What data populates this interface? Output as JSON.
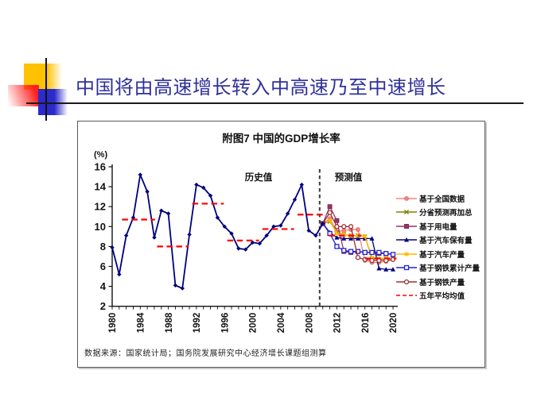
{
  "slide": {
    "title": "中国将由高速增长转入中高速乃至中速增长"
  },
  "chart_data": {
    "type": "line",
    "title": "附图7 中国的GDP增长率",
    "unit_label": "(%)",
    "annotations": {
      "historical": "历史值",
      "forecast": "预测值"
    },
    "source_note": "数据来源：国家统计局；国务院发展研究中心经济增长课题组测算",
    "xlim": [
      1980,
      2020
    ],
    "ylim": [
      2,
      16
    ],
    "y_ticks": [
      2,
      4,
      6,
      8,
      10,
      12,
      14,
      16
    ],
    "x_tick_labels": [
      1980,
      1984,
      1988,
      1992,
      1996,
      2000,
      2004,
      2008,
      2012,
      2016,
      2020
    ],
    "divider_year": 2009.55,
    "grid": false,
    "legend_position": "right",
    "historical": {
      "name": "GDP增长率历史值",
      "color": "#000080",
      "marker": "diamond",
      "years_start": 1980,
      "values": [
        7.9,
        5.2,
        9.1,
        10.9,
        15.2,
        13.5,
        8.9,
        11.6,
        11.3,
        4.1,
        3.8,
        9.2,
        14.2,
        13.9,
        13.1,
        10.9,
        10.0,
        9.3,
        7.8,
        7.7,
        8.4,
        8.3,
        9.1,
        10.0,
        10.1,
        11.3,
        12.7,
        14.2,
        9.6,
        9.1,
        10.3
      ]
    },
    "forecasts": [
      {
        "name": "基于全国数据",
        "color": "#ff8080",
        "edge": "#d46a6a",
        "marker": "circle",
        "years_start": 2010,
        "values": [
          10.3,
          10.8,
          9.5,
          9.6,
          9.7,
          9.7,
          6.6,
          6.4,
          6.4,
          6.5,
          6.7
        ]
      },
      {
        "name": "分省预测再加总",
        "color": "#808000",
        "edge": "#808000",
        "marker": "x",
        "years_start": 2010,
        "values": [
          10.3,
          10.5,
          9.4,
          9.2,
          9.1,
          9.1,
          9.0,
          6.8,
          6.7,
          6.8,
          6.8
        ]
      },
      {
        "name": "基于用电量",
        "color": "#993366",
        "edge": "#6e244a",
        "marker": "square",
        "years_start": 2010,
        "values": [
          10.3,
          12.0,
          10.6,
          7.5,
          7.4,
          7.5,
          7.4,
          7.4,
          7.3,
          7.3,
          7.2
        ]
      },
      {
        "name": "基于汽车保有量",
        "color": "#000080",
        "edge": "#000080",
        "marker": "triangle",
        "years_start": 2010,
        "values": [
          10.3,
          9.4,
          8.9,
          8.8,
          8.8,
          8.8,
          8.8,
          8.8,
          5.8,
          5.7,
          5.7
        ]
      },
      {
        "name": "基于汽车产量",
        "color": "#ffb900",
        "edge": "#d99e00",
        "marker": "asterisk",
        "years_start": 2010,
        "values": [
          10.3,
          10.6,
          9.3,
          9.2,
          9.1,
          9.1,
          9.0,
          6.9,
          6.8,
          6.8,
          6.8
        ]
      },
      {
        "name": "基于钢铁累计产量",
        "color": "#2222cc",
        "edge": "#2222cc",
        "marker": "open-square",
        "years_start": 2010,
        "values": [
          10.3,
          9.3,
          8.0,
          7.6,
          7.5,
          7.5,
          7.4,
          7.4,
          7.4,
          7.3,
          7.2
        ]
      },
      {
        "name": "基于钢铁产量",
        "color": "#993333",
        "edge": "#993333",
        "marker": "open-circle",
        "years_start": 2010,
        "values": [
          10.3,
          11.4,
          10.0,
          10.0,
          10.0,
          6.9,
          6.7,
          6.6,
          6.6,
          6.6,
          6.7
        ]
      }
    ],
    "averages": {
      "name": "五年平均均值",
      "color": "#ff0000",
      "style": "dashed",
      "segments": [
        {
          "from": 1981.4,
          "to": 1986.1,
          "value": 10.7
        },
        {
          "from": 1986.4,
          "to": 1990.9,
          "value": 8.0
        },
        {
          "from": 1991.4,
          "to": 1995.9,
          "value": 12.3
        },
        {
          "from": 1996.4,
          "to": 2000.9,
          "value": 8.6
        },
        {
          "from": 2001.4,
          "to": 2005.9,
          "value": 9.75
        },
        {
          "from": 2006.4,
          "to": 2010.2,
          "value": 11.2
        },
        {
          "from": 2010.9,
          "to": 2015.5,
          "value": 9.1
        },
        {
          "from": 2016.0,
          "to": 2020.5,
          "value": 6.8
        }
      ]
    }
  }
}
